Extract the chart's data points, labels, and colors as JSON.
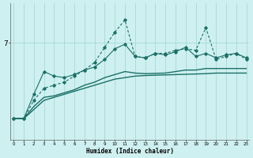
{
  "xlabel": "Humidex (Indice chaleur)",
  "bg_color": "#cff0f0",
  "grid_color": "#aadcdc",
  "line_color": "#1a7068",
  "x": [
    0,
    1,
    2,
    3,
    4,
    5,
    6,
    7,
    8,
    9,
    10,
    11,
    12,
    13,
    14,
    15,
    16,
    17,
    18,
    19,
    20,
    21,
    22,
    23
  ],
  "series_flat": [
    4.5,
    4.5,
    4.8,
    5.1,
    5.2,
    5.3,
    5.4,
    5.5,
    5.6,
    5.7,
    5.8,
    5.85,
    5.9,
    5.92,
    5.93,
    5.94,
    5.95,
    5.96,
    5.97,
    5.98,
    6.0,
    6.0,
    6.0,
    6.0
  ],
  "series_smooth_rise": [
    4.5,
    4.5,
    4.9,
    5.2,
    5.25,
    5.35,
    5.45,
    5.6,
    5.7,
    5.85,
    5.95,
    6.05,
    6.0,
    5.98,
    5.99,
    6.0,
    6.05,
    6.1,
    6.1,
    6.15,
    6.15,
    6.15,
    6.15,
    6.15
  ],
  "series_mid_zigzag": [
    4.5,
    4.5,
    5.3,
    6.05,
    5.9,
    5.85,
    5.95,
    6.1,
    6.2,
    6.45,
    6.8,
    6.95,
    6.55,
    6.5,
    6.65,
    6.6,
    6.7,
    6.85,
    6.55,
    6.65,
    6.5,
    6.6,
    6.65,
    6.5
  ],
  "series_high_volatile": [
    4.5,
    4.5,
    5.1,
    5.5,
    5.6,
    5.7,
    5.9,
    6.1,
    6.35,
    6.85,
    7.35,
    7.75,
    6.55,
    6.5,
    6.65,
    6.65,
    6.75,
    6.8,
    6.75,
    7.5,
    6.45,
    6.55,
    6.65,
    6.45
  ],
  "ytick_val": 7,
  "ylim_lo": 3.8,
  "ylim_hi": 8.3,
  "xlim_lo": -0.3,
  "xlim_hi": 23.3
}
